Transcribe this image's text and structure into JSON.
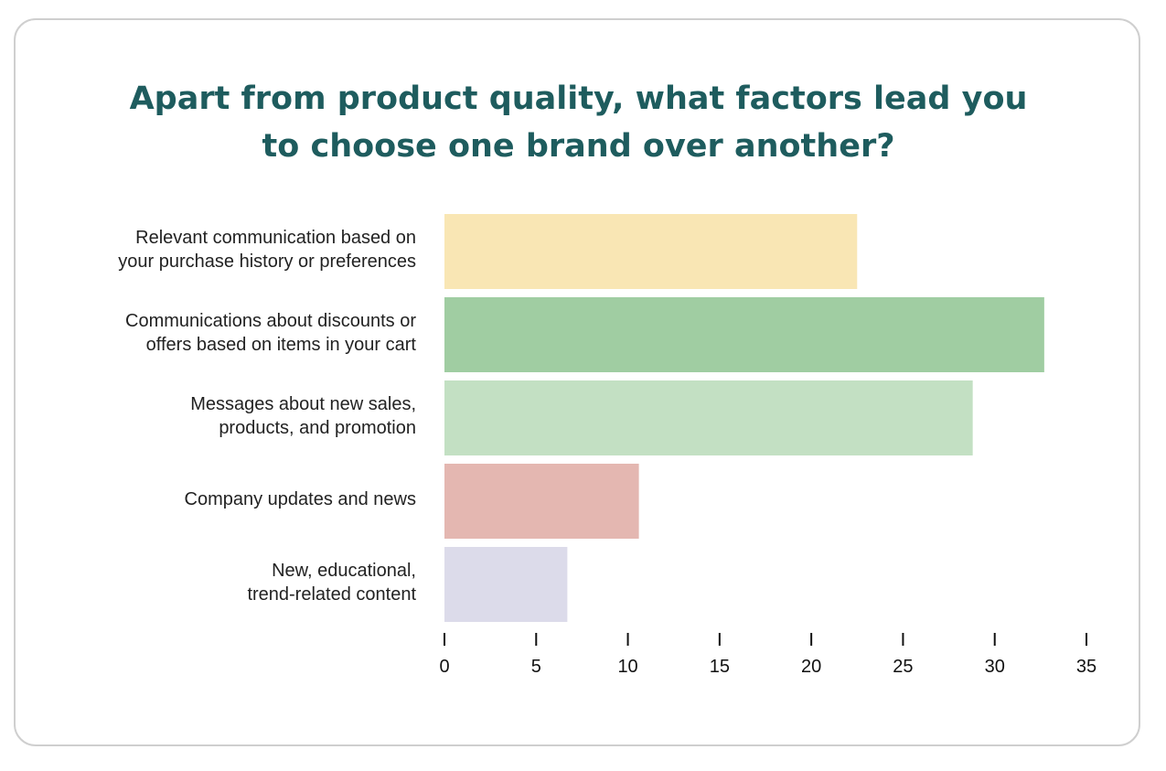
{
  "chart_data": {
    "type": "bar",
    "orientation": "horizontal",
    "title": [
      "Apart from product quality, what factors lead you",
      "to choose one brand over another?"
    ],
    "categories": [
      [
        "Relevant communication based on",
        "your purchase history or preferences"
      ],
      [
        "Communications about discounts or",
        "offers based on items in your cart"
      ],
      [
        "Messages about new sales,",
        "products, and promotion"
      ],
      [
        "Company updates and news"
      ],
      [
        "New, educational,",
        "trend-related content"
      ]
    ],
    "values": [
      22.5,
      32.7,
      28.8,
      10.6,
      6.7
    ],
    "colors": [
      "#f9e6b4",
      "#a0cda2",
      "#c3e0c3",
      "#e4b7b1",
      "#dcdbea"
    ],
    "xlim": [
      0,
      35
    ],
    "xticks": [
      0,
      5,
      10,
      15,
      20,
      25,
      30,
      35
    ],
    "xlabel": "",
    "ylabel": "",
    "grid": false
  }
}
